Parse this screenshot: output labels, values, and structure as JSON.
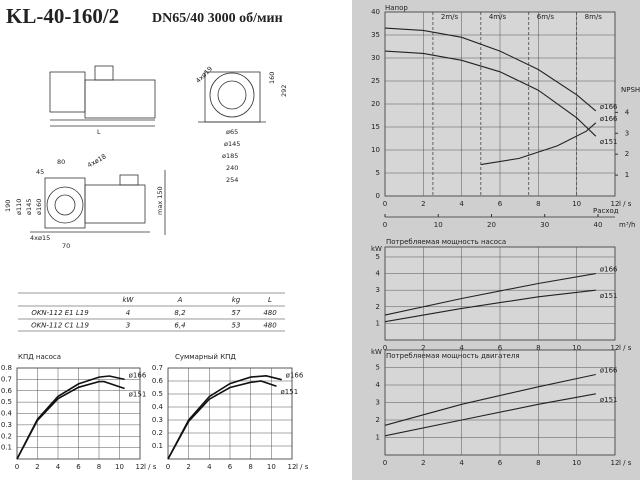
{
  "header": {
    "model": "KL-40-160/2",
    "spec": "DN65/40  3000 об/мин"
  },
  "dimensions": [
    "L",
    "4xø19",
    "160",
    "292",
    "ø65",
    "ø145",
    "ø185",
    "240",
    "254",
    "80",
    "4xø18",
    "45",
    "190",
    "ø110",
    "ø145",
    "ø160",
    "4xø15",
    "70",
    "max 150"
  ],
  "table": {
    "header": [
      "kW",
      "A",
      "kg",
      "L"
    ],
    "rows": [
      [
        "OKN-112 E1 L19",
        "4",
        "8,2",
        "57",
        "480"
      ],
      [
        "OKN-112 C1 L19",
        "3",
        "6,4",
        "53",
        "480"
      ]
    ]
  },
  "chart_data": [
    {
      "type": "line",
      "title": "Напор",
      "xlabel": "l / s",
      "xlim": [
        0,
        12
      ],
      "xticks": [
        0,
        2,
        4,
        6,
        8,
        10,
        12
      ],
      "ylim": [
        0,
        40
      ],
      "yticks": [
        0,
        5,
        10,
        15,
        20,
        25,
        30,
        35,
        40
      ],
      "grid": true,
      "x2title": "Расход",
      "x2label": "m³/h",
      "x2lim": [
        0,
        43.2
      ],
      "x2ticks": [
        0,
        10,
        20,
        30,
        40
      ],
      "y2label": "NPSH",
      "y2lim": [
        0,
        8.8
      ],
      "y2ticks": [
        1,
        2,
        3,
        4
      ],
      "annotations": [
        {
          "x": 2.5,
          "label": "2m/s"
        },
        {
          "x": 5,
          "label": "4m/s"
        },
        {
          "x": 7.5,
          "label": "6m/s"
        },
        {
          "x": 10,
          "label": "8m/s"
        }
      ],
      "series": [
        {
          "name": "ø166",
          "color": "#222222",
          "x": [
            0,
            2,
            4,
            6,
            8,
            10,
            11
          ],
          "values": [
            36.5,
            36,
            34.5,
            31.5,
            27.5,
            22,
            18.5
          ]
        },
        {
          "name": "ø151",
          "color": "#222222",
          "x": [
            0,
            2,
            4,
            6,
            8,
            10,
            11
          ],
          "values": [
            31.5,
            31,
            29.5,
            27,
            23,
            17,
            13
          ]
        },
        {
          "name": "ø166",
          "color": "#222222",
          "axis": "y2",
          "x": [
            5,
            7,
            9,
            10.5,
            11
          ],
          "values": [
            1.5,
            1.8,
            2.4,
            3.1,
            3.5
          ]
        }
      ]
    },
    {
      "type": "line",
      "title": "Потребляемая мощность насоса",
      "ylabel": "kW",
      "xlabel": "l / s",
      "xlim": [
        0,
        12
      ],
      "xticks": [
        0,
        2,
        4,
        6,
        8,
        10,
        12
      ],
      "ylim": [
        0,
        5.6
      ],
      "yticks": [
        1,
        2,
        3,
        4,
        5
      ],
      "grid": true,
      "series": [
        {
          "name": "ø166",
          "color": "#222222",
          "x": [
            0,
            4,
            8,
            11
          ],
          "values": [
            1.5,
            2.5,
            3.4,
            4.0
          ]
        },
        {
          "name": "ø151",
          "color": "#222222",
          "x": [
            0,
            4,
            8,
            11
          ],
          "values": [
            1.1,
            1.9,
            2.6,
            3.0
          ]
        }
      ]
    },
    {
      "type": "line",
      "title": "Потребляемая мощность двигателя",
      "ylabel": "kW",
      "xlabel": "l / s",
      "xlim": [
        0,
        12
      ],
      "xticks": [
        0,
        2,
        4,
        6,
        8,
        10,
        12
      ],
      "ylim": [
        0,
        6
      ],
      "yticks": [
        1,
        2,
        3,
        4,
        5
      ],
      "grid": true,
      "series": [
        {
          "name": "ø166",
          "color": "#222222",
          "x": [
            0,
            4,
            8,
            11
          ],
          "values": [
            1.7,
            2.9,
            3.9,
            4.6
          ]
        },
        {
          "name": "ø151",
          "color": "#222222",
          "x": [
            0,
            4,
            8,
            11
          ],
          "values": [
            1.1,
            2.0,
            2.9,
            3.5
          ]
        }
      ]
    },
    {
      "type": "line",
      "title": "КПД насоса",
      "xlabel": "l / s",
      "xlim": [
        0,
        12
      ],
      "xticks": [
        0,
        2,
        4,
        6,
        8,
        10,
        12
      ],
      "ylim": [
        0,
        0.8
      ],
      "yticks": [
        0.1,
        0.2,
        0.3,
        0.4,
        0.5,
        0.6,
        0.7,
        0.8
      ],
      "grid": true,
      "series": [
        {
          "name": "ø166",
          "color": "#111111",
          "x": [
            0,
            2,
            4,
            6,
            8,
            9,
            10.5
          ],
          "values": [
            0,
            0.35,
            0.55,
            0.66,
            0.72,
            0.73,
            0.7
          ]
        },
        {
          "name": "ø151",
          "color": "#111111",
          "x": [
            0,
            2,
            4,
            6,
            8,
            8.5,
            10.5
          ],
          "values": [
            0,
            0.34,
            0.53,
            0.63,
            0.68,
            0.68,
            0.62
          ]
        }
      ]
    },
    {
      "type": "line",
      "title": "Суммарный КПД",
      "xlabel": "l / s",
      "xlim": [
        0,
        12
      ],
      "xticks": [
        0,
        2,
        4,
        6,
        8,
        10,
        12
      ],
      "ylim": [
        0,
        0.7
      ],
      "yticks": [
        0.1,
        0.2,
        0.3,
        0.4,
        0.5,
        0.6,
        0.7
      ],
      "grid": true,
      "series": [
        {
          "name": "ø166",
          "color": "#111111",
          "x": [
            0,
            2,
            4,
            6,
            8,
            9.5,
            11
          ],
          "values": [
            0,
            0.3,
            0.48,
            0.58,
            0.63,
            0.64,
            0.61
          ]
        },
        {
          "name": "ø151",
          "color": "#111111",
          "x": [
            0,
            2,
            4,
            6,
            8,
            9,
            10.5
          ],
          "values": [
            0,
            0.29,
            0.46,
            0.55,
            0.59,
            0.6,
            0.56
          ]
        }
      ]
    }
  ]
}
